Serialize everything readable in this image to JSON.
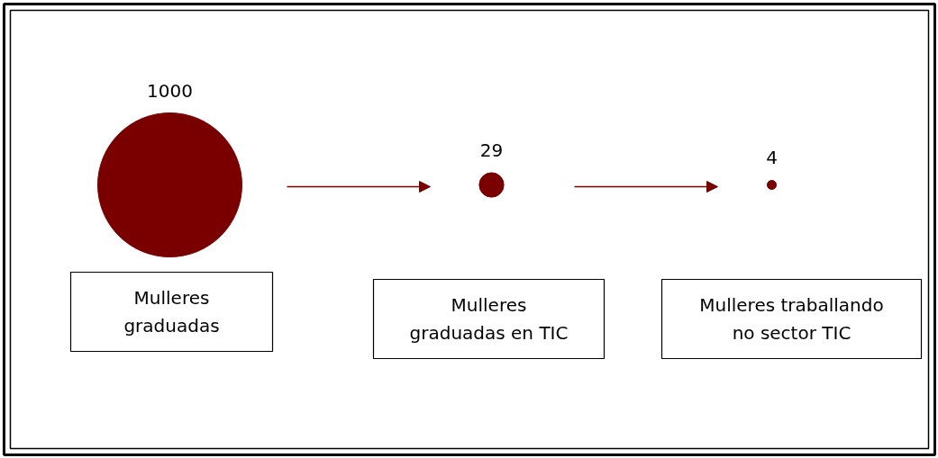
{
  "chart_data": {
    "type": "other",
    "categories": [
      "Mulleres\ngraduadas",
      "Mulleres\ngraduadas en TIC",
      "Mulleres traballando\nno sector TIC"
    ],
    "values": [
      1000,
      29,
      4
    ],
    "color": "#7a0000",
    "data_labels": true
  }
}
